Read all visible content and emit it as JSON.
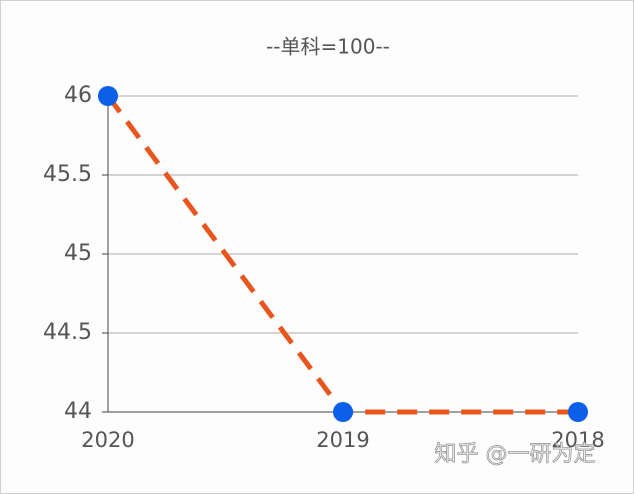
{
  "chart_data": {
    "type": "line",
    "title": "--单科=100--",
    "categories": [
      "2020",
      "2019",
      "2018"
    ],
    "series": [
      {
        "values": [
          46,
          44,
          44
        ],
        "color": "#e8561e",
        "marker_color": "#0b5fe8"
      }
    ],
    "ylim": [
      44,
      46
    ],
    "yticks": [
      44,
      44.5,
      45,
      45.5,
      46
    ],
    "grid": true
  },
  "watermark": "知乎 @一研为定"
}
